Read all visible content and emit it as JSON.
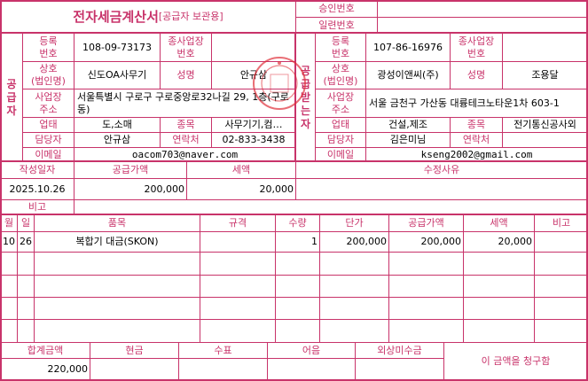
{
  "header": {
    "title": "전자세금계산서",
    "subtitle": "[공급자 보관용]",
    "approval_label": "승인번호",
    "approval_value": "",
    "serial_label": "일련번호",
    "serial_value": ""
  },
  "labels": {
    "reg_no": "등록\n번호",
    "branch_no": "종사업장\n번호",
    "company": "상호\n(법인명)",
    "name": "성명",
    "address": "사업장\n주소",
    "biz_type": "업태",
    "biz_item": "종목",
    "manager": "담당자",
    "contact": "연락처",
    "email": "이메일"
  },
  "supplier": {
    "side_label": "공급자",
    "reg_no": "108-09-73173",
    "branch_no": "",
    "company": "신도OA사무기",
    "name": "안규삼",
    "address": "서울특별시 구로구 구로중앙로32나길 29, 1층(구로동)",
    "biz_type": "도,소매",
    "biz_item": "사무기기,컴…",
    "manager": "안규삼",
    "contact": "02-833-3438",
    "email": "oacom703@naver.com",
    "stamp_text": "신도OA사무기"
  },
  "receiver": {
    "side_label": "공급받는자",
    "reg_no": "107-86-16976",
    "branch_no": "",
    "company": "광성이앤씨(주)",
    "name": "조용달",
    "address": "서울 금천구 가산동 대륭테크노타운1차 603-1",
    "biz_type": "건설,제조",
    "biz_item": "전기통신공사외",
    "manager": "김은미님",
    "contact": "",
    "email": "kseng2002@gmail.com"
  },
  "summary": {
    "date_label": "작성일자",
    "supply_label": "공급가액",
    "tax_label": "세액",
    "reason_label": "수정사유",
    "date": "2025.10.26",
    "supply": "200,000",
    "tax": "20,000",
    "reason": "",
    "note_label": "비고",
    "note": ""
  },
  "items": {
    "headers": [
      "월",
      "일",
      "품목",
      "규격",
      "수량",
      "단가",
      "공급가액",
      "세액",
      "비고"
    ],
    "rows": [
      [
        "10",
        "26",
        "복합기 대금(SKON)",
        "",
        "1",
        "200,000",
        "200,000",
        "20,000",
        ""
      ]
    ]
  },
  "totals": {
    "headers": [
      "합계금액",
      "현금",
      "수표",
      "어음",
      "외상미수금"
    ],
    "values": [
      "220,000",
      "",
      "",
      "",
      ""
    ],
    "claim_text": "이 금액을 청구함"
  },
  "colors": {
    "accent": "#c8336a",
    "stamp": "#e0303a"
  }
}
